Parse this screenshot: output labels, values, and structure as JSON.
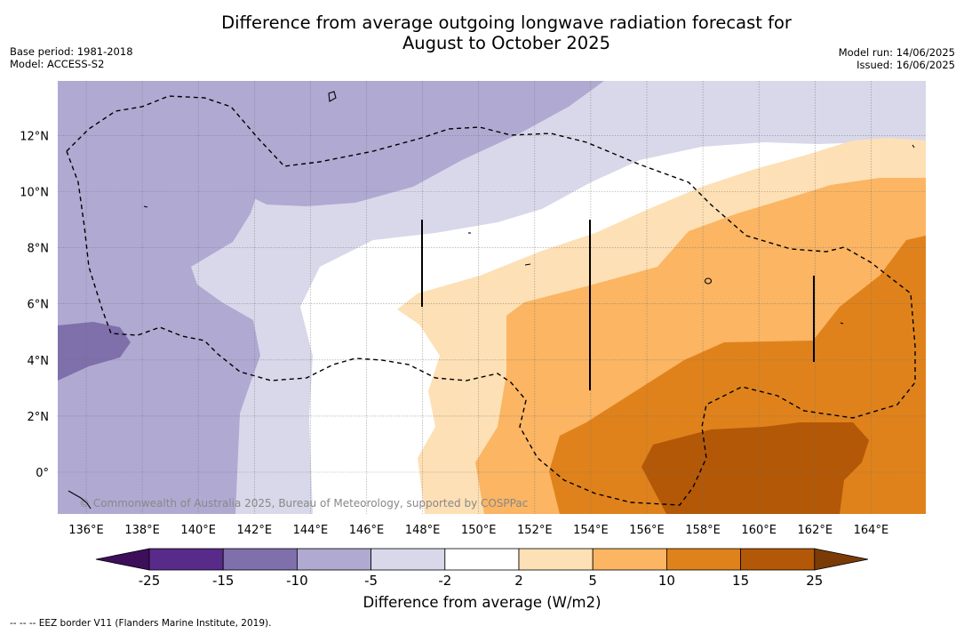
{
  "header": {
    "title_line1": "Difference from average outgoing longwave radiation forecast for",
    "title_line2": "August to October 2025",
    "base_period": "Base period: 1981-2018",
    "model": "Model: ACCESS-S2",
    "model_run": "Model run: 14/06/2025",
    "issued": "Issued: 16/06/2025"
  },
  "map": {
    "lon_ticks": [
      "136°E",
      "138°E",
      "140°E",
      "142°E",
      "144°E",
      "146°E",
      "148°E",
      "150°E",
      "152°E",
      "154°E",
      "156°E",
      "158°E",
      "160°E",
      "162°E",
      "164°E"
    ],
    "lat_ticks": [
      "12°N",
      "10°N",
      "8°N",
      "6°N",
      "4°N",
      "2°N",
      "0°"
    ],
    "lon_range": [
      135,
      166
    ],
    "lat_range": [
      -1.5,
      14
    ],
    "copyright": "© Commonwealth of Australia 2025, Bureau of Meteorology, supported by COSPPac",
    "grid": true
  },
  "legend": {
    "title": "Difference from average (W/m2)",
    "tick_labels": [
      "-25",
      "-15",
      "-10",
      "-5",
      "-2",
      "2",
      "5",
      "10",
      "15",
      "25"
    ],
    "colors": [
      "#3d0f5b",
      "#582a8a",
      "#7f6fab",
      "#b0aad2",
      "#d8d8ea",
      "#ffffff",
      "#fde0b5",
      "#fbb563",
      "#e0821b",
      "#b35807",
      "#7a3b07"
    ]
  },
  "footnote": "--  --  -- EEZ border V11 (Flanders Marine Institute, 2019)."
}
